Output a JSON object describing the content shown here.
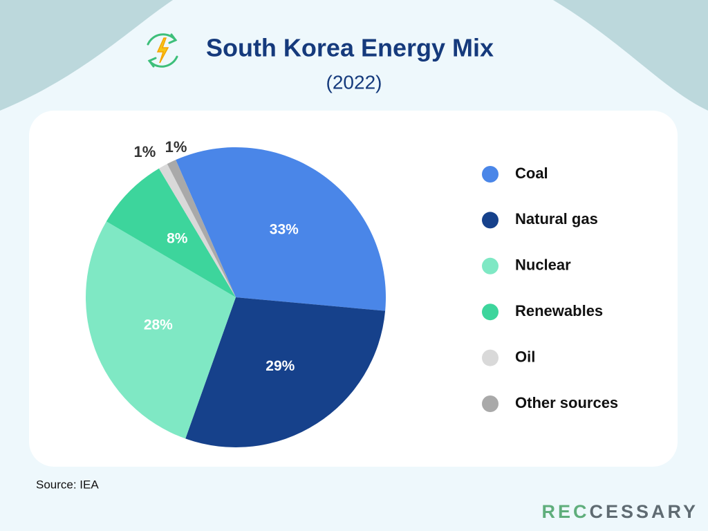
{
  "chart_data": {
    "type": "pie",
    "title": "South Korea Energy Mix",
    "subtitle": "(2022)",
    "categories": [
      "Coal",
      "Natural gas",
      "Nuclear",
      "Renewables",
      "Oil",
      "Other sources"
    ],
    "values": [
      33,
      29,
      28,
      8,
      1,
      1
    ],
    "value_labels": [
      "33%",
      "29%",
      "28%",
      "8%",
      "1%",
      "1%"
    ],
    "colors": [
      "#4a86e8",
      "#16418b",
      "#7fe8c4",
      "#3dd59c",
      "#d9d9d9",
      "#a9a9a9"
    ],
    "legend": "right",
    "source": "Source: IEA"
  },
  "brand": [
    "REC",
    "CESSARY"
  ]
}
